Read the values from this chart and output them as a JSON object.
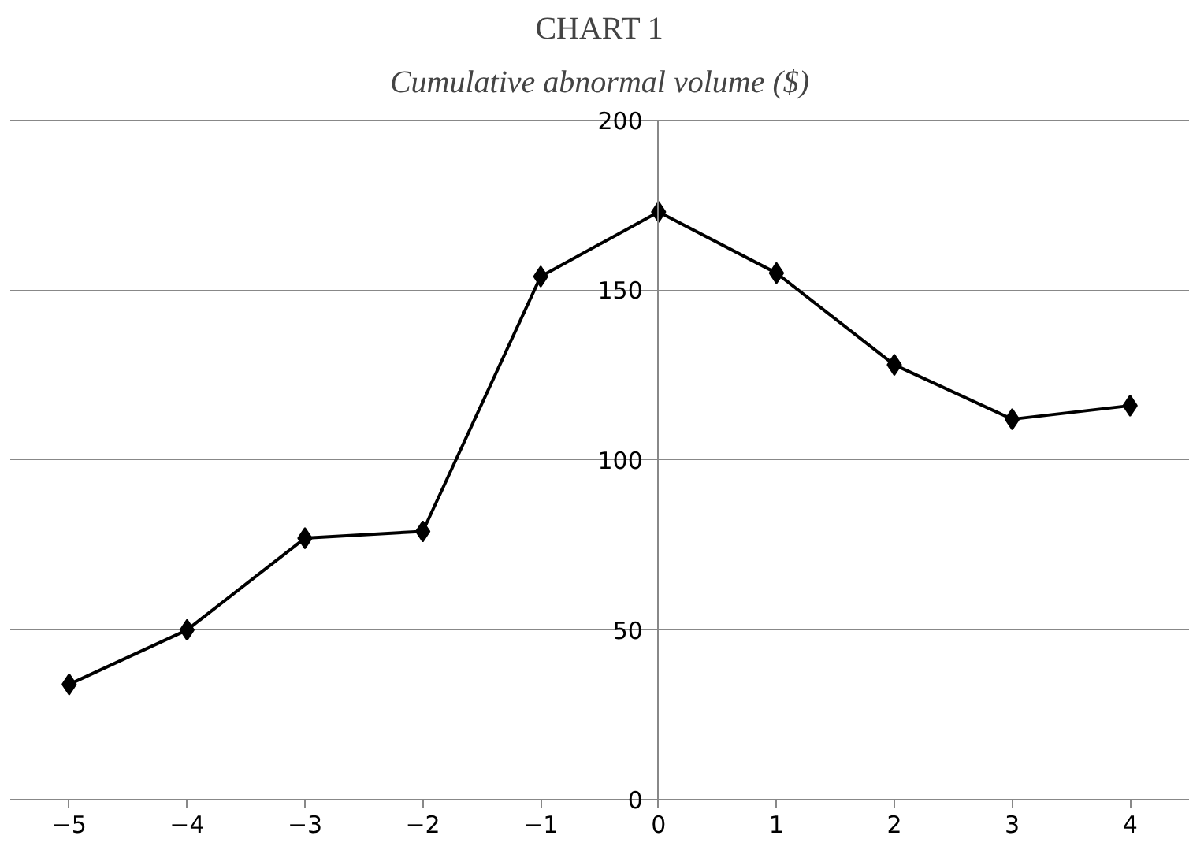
{
  "chart_data": {
    "type": "line",
    "title": "CHART 1",
    "subtitle": "Cumulative abnormal volume ($)",
    "x": [
      -5,
      -4,
      -3,
      -2,
      -1,
      0,
      1,
      2,
      3,
      4
    ],
    "series": [
      {
        "color": "#000000",
        "values": [
          34,
          50,
          77,
          79,
          154,
          173,
          155,
          128,
          112,
          116
        ]
      }
    ],
    "xlim": [
      -5.5,
      4.5
    ],
    "xticks": [
      -5,
      -4,
      -3,
      -2,
      -1,
      0,
      1,
      2,
      3,
      4
    ],
    "ylim": [
      0,
      200
    ],
    "yticks": [
      0,
      50,
      100,
      150,
      200
    ],
    "grid": "y",
    "marker": "diamond",
    "line_style": "solid"
  }
}
